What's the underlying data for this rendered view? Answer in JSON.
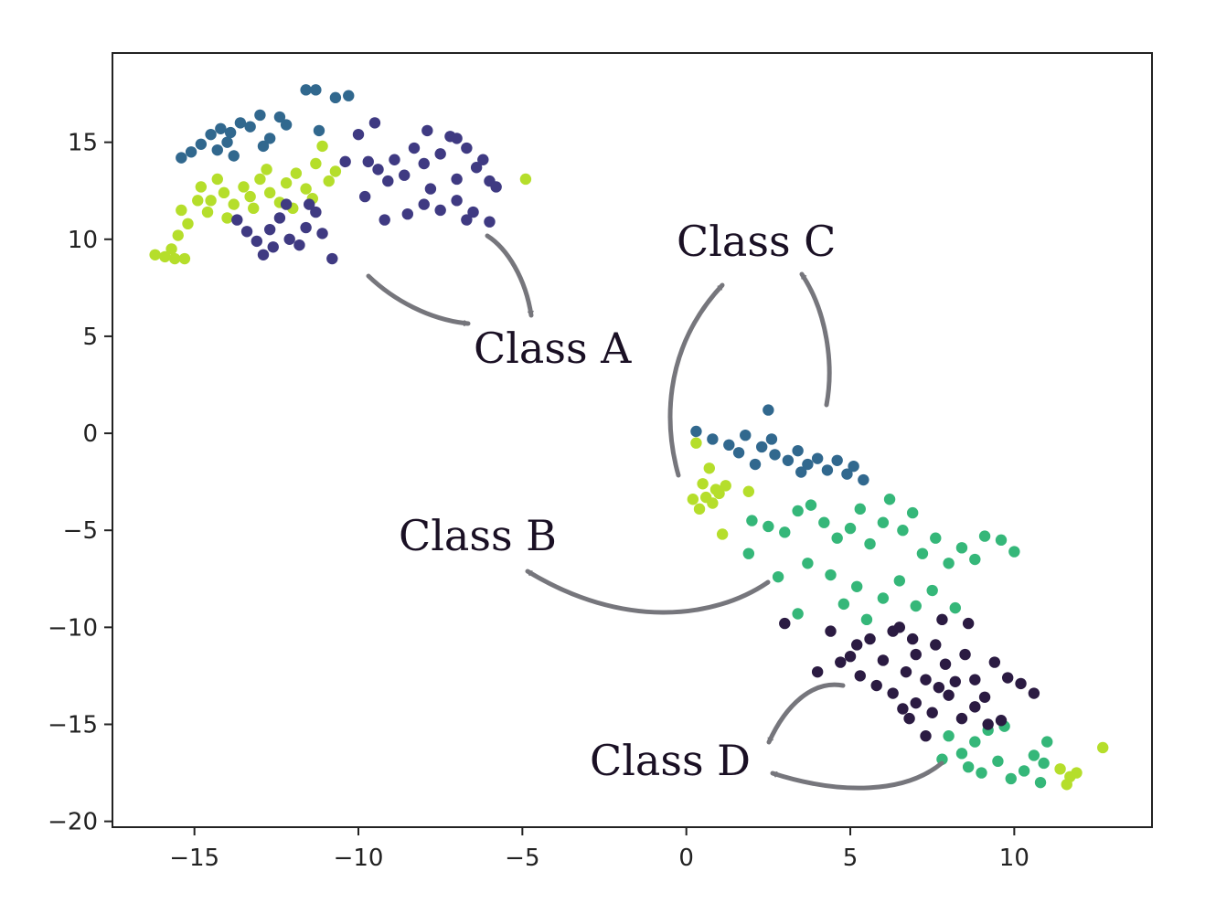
{
  "chart_data": {
    "type": "scatter",
    "title": "",
    "xlabel": "",
    "ylabel": "",
    "xlim": [
      -17.5,
      14.2
    ],
    "ylim": [
      -20.3,
      19.6
    ],
    "xticks": [
      -15,
      -10,
      -5,
      0,
      5,
      10
    ],
    "yticks": [
      15,
      10,
      5,
      0,
      -5,
      -10,
      -15,
      -20
    ],
    "xtick_labels": [
      "−15",
      "−10",
      "−5",
      "0",
      "5",
      "10"
    ],
    "ytick_labels": [
      "15",
      "10",
      "5",
      "0",
      "−5",
      "−10",
      "−15",
      "−20"
    ],
    "grid": false,
    "legend": "none",
    "series": [
      {
        "color": "#b5de2b",
        "points": [
          [
            -16.2,
            9.2
          ],
          [
            -15.9,
            9.1
          ],
          [
            -15.6,
            9.0
          ],
          [
            -15.3,
            9.0
          ],
          [
            -15.7,
            9.5
          ],
          [
            -15.5,
            10.2
          ],
          [
            -15.2,
            10.8
          ],
          [
            -15.4,
            11.5
          ],
          [
            -14.9,
            12.0
          ],
          [
            -14.6,
            11.4
          ],
          [
            -14.8,
            12.7
          ],
          [
            -14.3,
            13.1
          ],
          [
            -14.1,
            12.4
          ],
          [
            -13.8,
            11.8
          ],
          [
            -13.5,
            12.7
          ],
          [
            -13.3,
            12.2
          ],
          [
            -13.0,
            13.1
          ],
          [
            -12.7,
            12.4
          ],
          [
            -12.4,
            11.9
          ],
          [
            -12.2,
            12.9
          ],
          [
            -11.9,
            13.4
          ],
          [
            -11.6,
            12.6
          ],
          [
            -11.3,
            13.9
          ],
          [
            -11.1,
            14.8
          ],
          [
            -10.9,
            13.0
          ],
          [
            -10.7,
            13.5
          ],
          [
            -14.5,
            12.0
          ],
          [
            -13.2,
            11.6
          ],
          [
            -12.8,
            13.6
          ],
          [
            -12.0,
            11.6
          ],
          [
            -11.4,
            12.1
          ],
          [
            -14.0,
            11.1
          ],
          [
            -4.9,
            13.1
          ],
          [
            0.3,
            -0.5
          ],
          [
            0.7,
            -1.8
          ],
          [
            0.5,
            -2.6
          ],
          [
            0.9,
            -2.9
          ],
          [
            0.6,
            -3.3
          ],
          [
            0.8,
            -3.6
          ],
          [
            1.0,
            -3.1
          ],
          [
            0.2,
            -3.4
          ],
          [
            0.4,
            -3.9
          ],
          [
            1.2,
            -2.7
          ],
          [
            1.9,
            -3.0
          ],
          [
            1.1,
            -5.2
          ],
          [
            11.4,
            -17.3
          ],
          [
            11.7,
            -17.7
          ],
          [
            11.6,
            -18.1
          ],
          [
            11.9,
            -17.5
          ],
          [
            12.7,
            -16.2
          ]
        ]
      },
      {
        "color": "#35b779",
        "points": [
          [
            2.0,
            -4.5
          ],
          [
            2.5,
            -4.8
          ],
          [
            3.0,
            -5.1
          ],
          [
            3.4,
            -4.0
          ],
          [
            3.8,
            -3.7
          ],
          [
            4.2,
            -4.6
          ],
          [
            4.6,
            -5.4
          ],
          [
            5.0,
            -4.9
          ],
          [
            5.3,
            -3.9
          ],
          [
            5.6,
            -5.7
          ],
          [
            6.0,
            -4.6
          ],
          [
            6.2,
            -3.4
          ],
          [
            6.6,
            -5.0
          ],
          [
            6.9,
            -4.1
          ],
          [
            7.2,
            -6.2
          ],
          [
            7.6,
            -5.4
          ],
          [
            8.0,
            -6.7
          ],
          [
            8.4,
            -5.9
          ],
          [
            8.8,
            -6.5
          ],
          [
            9.1,
            -5.3
          ],
          [
            9.6,
            -5.5
          ],
          [
            10.0,
            -6.1
          ],
          [
            3.7,
            -6.7
          ],
          [
            4.4,
            -7.3
          ],
          [
            5.2,
            -7.9
          ],
          [
            6.0,
            -8.5
          ],
          [
            6.5,
            -7.6
          ],
          [
            7.0,
            -8.9
          ],
          [
            7.5,
            -8.1
          ],
          [
            8.2,
            -9.0
          ],
          [
            4.8,
            -8.8
          ],
          [
            5.5,
            -9.6
          ],
          [
            3.4,
            -9.3
          ],
          [
            2.8,
            -7.4
          ],
          [
            1.9,
            -6.2
          ],
          [
            9.2,
            -15.3
          ],
          [
            8.8,
            -15.9
          ],
          [
            8.4,
            -16.5
          ],
          [
            8.0,
            -15.6
          ],
          [
            7.8,
            -16.8
          ],
          [
            8.6,
            -17.2
          ],
          [
            9.0,
            -17.5
          ],
          [
            9.5,
            -16.9
          ],
          [
            9.9,
            -17.8
          ],
          [
            10.3,
            -17.4
          ],
          [
            10.6,
            -16.6
          ],
          [
            10.8,
            -18.0
          ],
          [
            11.0,
            -15.9
          ],
          [
            9.7,
            -15.1
          ],
          [
            10.9,
            -17.0
          ]
        ]
      },
      {
        "color": "#31688e",
        "points": [
          [
            -15.4,
            14.2
          ],
          [
            -15.1,
            14.5
          ],
          [
            -14.8,
            14.9
          ],
          [
            -14.5,
            15.4
          ],
          [
            -14.2,
            15.7
          ],
          [
            -13.9,
            15.5
          ],
          [
            -13.6,
            16.0
          ],
          [
            -13.3,
            15.8
          ],
          [
            -13.0,
            16.4
          ],
          [
            -12.7,
            15.2
          ],
          [
            -12.4,
            16.3
          ],
          [
            -12.2,
            15.9
          ],
          [
            -11.6,
            17.7
          ],
          [
            -11.3,
            17.7
          ],
          [
            -10.7,
            17.3
          ],
          [
            -10.3,
            17.4
          ],
          [
            -14.3,
            14.6
          ],
          [
            -13.8,
            14.3
          ],
          [
            -14.0,
            15.0
          ],
          [
            -12.9,
            14.8
          ],
          [
            -11.2,
            15.6
          ],
          [
            0.3,
            0.1
          ],
          [
            0.8,
            -0.3
          ],
          [
            1.3,
            -0.6
          ],
          [
            1.8,
            -0.1
          ],
          [
            2.3,
            -0.7
          ],
          [
            2.7,
            -1.1
          ],
          [
            3.1,
            -1.4
          ],
          [
            3.4,
            -0.9
          ],
          [
            3.7,
            -1.6
          ],
          [
            4.0,
            -1.3
          ],
          [
            4.3,
            -1.9
          ],
          [
            4.6,
            -1.4
          ],
          [
            4.9,
            -2.1
          ],
          [
            5.1,
            -1.7
          ],
          [
            5.4,
            -2.4
          ],
          [
            2.6,
            -0.3
          ],
          [
            3.5,
            -2.0
          ],
          [
            1.6,
            -1.0
          ],
          [
            2.1,
            -1.6
          ],
          [
            2.5,
            1.2
          ]
        ]
      },
      {
        "color": "#3f3a82",
        "points": [
          [
            -10.4,
            14.0
          ],
          [
            -10.0,
            15.4
          ],
          [
            -9.7,
            14.0
          ],
          [
            -9.4,
            13.6
          ],
          [
            -9.1,
            13.0
          ],
          [
            -8.9,
            14.1
          ],
          [
            -8.6,
            13.3
          ],
          [
            -8.3,
            14.7
          ],
          [
            -8.0,
            13.9
          ],
          [
            -7.8,
            12.6
          ],
          [
            -7.5,
            14.4
          ],
          [
            -7.2,
            15.3
          ],
          [
            -7.0,
            13.1
          ],
          [
            -6.7,
            14.7
          ],
          [
            -6.4,
            13.7
          ],
          [
            -6.2,
            14.1
          ],
          [
            -6.0,
            13.0
          ],
          [
            -5.8,
            12.7
          ],
          [
            -9.5,
            16.0
          ],
          [
            -8.5,
            11.3
          ],
          [
            -8.0,
            11.8
          ],
          [
            -7.5,
            11.5
          ],
          [
            -7.0,
            12.0
          ],
          [
            -6.5,
            11.4
          ],
          [
            -6.0,
            10.9
          ],
          [
            -9.2,
            11.0
          ],
          [
            -7.9,
            15.6
          ],
          [
            -7.0,
            15.2
          ],
          [
            -6.7,
            11.0
          ],
          [
            -9.8,
            12.2
          ],
          [
            -13.7,
            11.0
          ],
          [
            -13.4,
            10.4
          ],
          [
            -13.1,
            9.9
          ],
          [
            -12.9,
            9.2
          ],
          [
            -12.7,
            10.5
          ],
          [
            -12.4,
            11.1
          ],
          [
            -12.1,
            10.0
          ],
          [
            -11.8,
            9.7
          ],
          [
            -11.6,
            10.6
          ],
          [
            -11.3,
            11.4
          ],
          [
            -11.1,
            10.3
          ],
          [
            -10.8,
            9.0
          ],
          [
            -11.5,
            11.8
          ],
          [
            -12.2,
            11.8
          ],
          [
            -12.6,
            9.6
          ]
        ]
      },
      {
        "color": "#2b1b42",
        "points": [
          [
            3.0,
            -9.8
          ],
          [
            4.4,
            -10.2
          ],
          [
            5.0,
            -11.5
          ],
          [
            5.6,
            -10.6
          ],
          [
            6.0,
            -11.7
          ],
          [
            6.3,
            -10.2
          ],
          [
            6.7,
            -12.3
          ],
          [
            7.0,
            -11.4
          ],
          [
            7.3,
            -12.7
          ],
          [
            7.6,
            -10.9
          ],
          [
            7.9,
            -11.9
          ],
          [
            8.2,
            -12.8
          ],
          [
            8.5,
            -11.4
          ],
          [
            8.8,
            -12.7
          ],
          [
            9.1,
            -13.6
          ],
          [
            9.4,
            -11.8
          ],
          [
            9.8,
            -12.6
          ],
          [
            10.2,
            -12.9
          ],
          [
            10.6,
            -13.4
          ],
          [
            7.0,
            -13.9
          ],
          [
            7.5,
            -14.4
          ],
          [
            8.0,
            -13.5
          ],
          [
            8.4,
            -14.7
          ],
          [
            8.8,
            -14.1
          ],
          [
            9.2,
            -15.0
          ],
          [
            7.3,
            -15.6
          ],
          [
            6.8,
            -14.7
          ],
          [
            6.3,
            -13.4
          ],
          [
            5.8,
            -13.0
          ],
          [
            5.3,
            -12.5
          ],
          [
            4.7,
            -11.8
          ],
          [
            6.5,
            -10.0
          ],
          [
            7.8,
            -9.6
          ],
          [
            8.6,
            -9.8
          ],
          [
            4.0,
            -12.3
          ],
          [
            9.6,
            -14.8
          ],
          [
            6.6,
            -14.2
          ],
          [
            7.7,
            -13.1
          ],
          [
            5.2,
            -10.9
          ],
          [
            6.9,
            -10.6
          ]
        ]
      }
    ],
    "annotations": [
      "Class A",
      "Class B",
      "Class C",
      "Class D"
    ]
  }
}
